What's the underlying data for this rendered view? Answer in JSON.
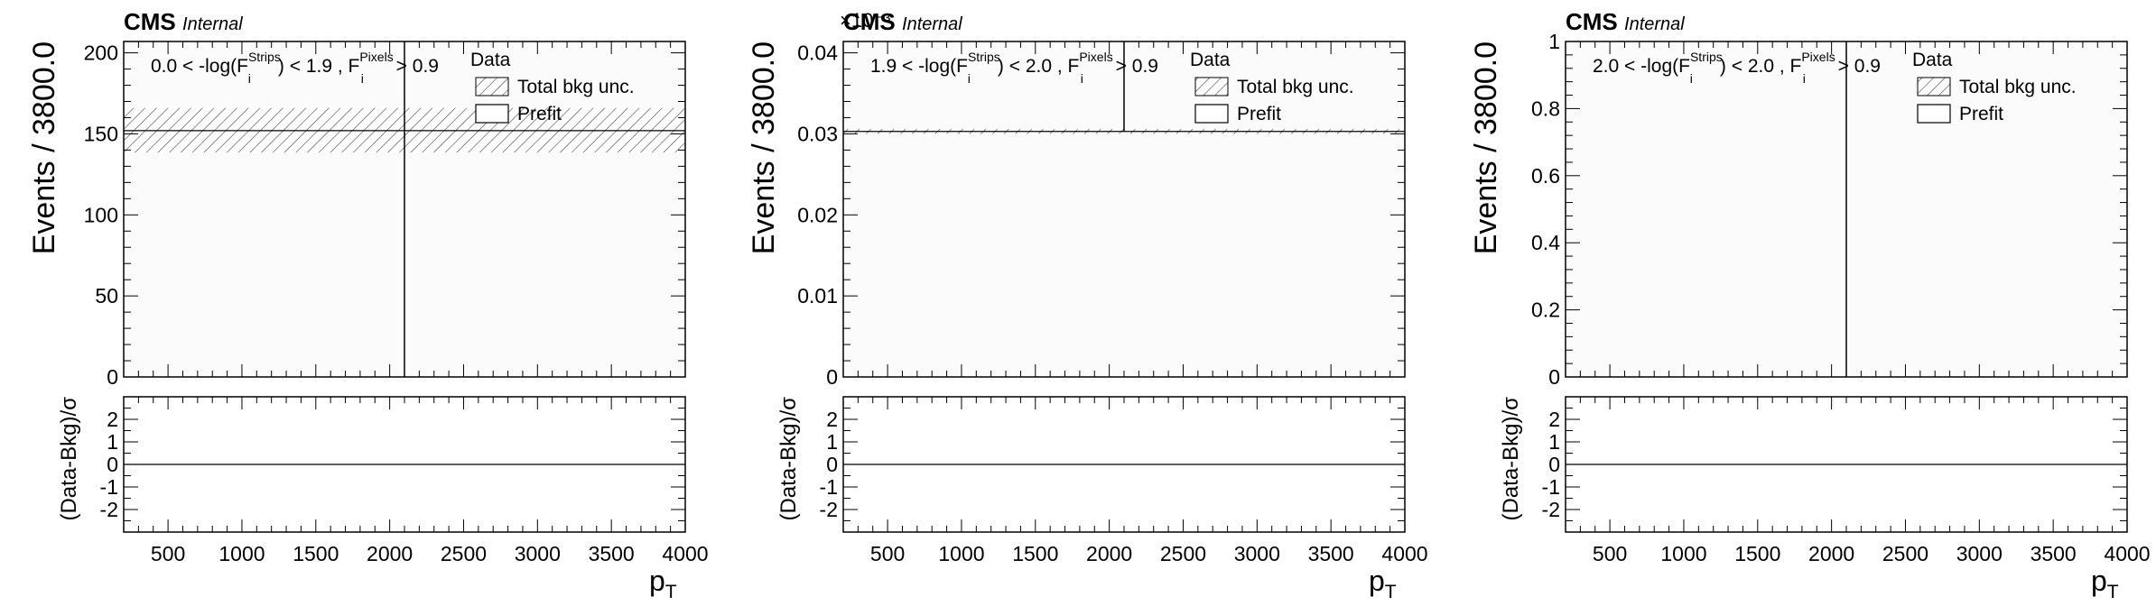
{
  "chart_data": [
    {
      "type": "bar",
      "experiment": "CMS",
      "status": "Internal",
      "region_label": {
        "pre": "0.0 < -log(F",
        "sup1": "Strips",
        "sub1": "i",
        "mid": ") < 1.9 , F",
        "sup2": "Pixels",
        "sub2": "i",
        "post": " > 0.9"
      },
      "ylabel": "Events / 3800.0",
      "ratio_ylabel": "(Data-Bkg)/σ",
      "xlabel": {
        "main": "p",
        "sub": "T"
      },
      "exponent_label": "",
      "xlim": [
        200,
        4000
      ],
      "ylim": [
        0,
        207
      ],
      "ratio_ylim": [
        -3,
        3
      ],
      "x_ticks": [
        500,
        1000,
        1500,
        2000,
        2500,
        3000,
        3500,
        4000
      ],
      "y_ticks": [
        0,
        50,
        100,
        150,
        200
      ],
      "y_tick_labels": [
        "0",
        "50",
        "100",
        "150",
        "200"
      ],
      "ratio_ticks": [
        -2,
        -1,
        0,
        1,
        2
      ],
      "prefit_value": 152,
      "bkg_unc_band": [
        138.5,
        166
      ],
      "data_marker": {
        "x": 2100,
        "y": 152,
        "yerr_low": 152,
        "yerr_high": 152
      },
      "legend": [
        {
          "kind": "data",
          "label": "Data"
        },
        {
          "kind": "hatch",
          "label": "Total bkg unc."
        },
        {
          "kind": "box",
          "label": "Prefit"
        }
      ]
    },
    {
      "type": "bar",
      "experiment": "CMS",
      "status": "Internal",
      "region_label": {
        "pre": "1.9 < -log(F",
        "sup1": "Strips",
        "sub1": "i",
        "mid": ") < 2.0 , F",
        "sup2": "Pixels",
        "sub2": "i",
        "post": " > 0.9"
      },
      "ylabel": "Events / 3800.0",
      "ratio_ylabel": "(Data-Bkg)/σ",
      "xlabel": {
        "main": "p",
        "sub": "T"
      },
      "exponent_label": "×10⁻³",
      "xlim": [
        200,
        4000
      ],
      "ylim": [
        0,
        0.0414
      ],
      "ratio_ylim": [
        -3,
        3
      ],
      "x_ticks": [
        500,
        1000,
        1500,
        2000,
        2500,
        3000,
        3500,
        4000
      ],
      "y_ticks": [
        0,
        0.01,
        0.02,
        0.03,
        0.04
      ],
      "y_tick_labels": [
        "0",
        "0.01",
        "0.02",
        "0.03",
        "0.04"
      ],
      "ratio_ticks": [
        -2,
        -1,
        0,
        1,
        2
      ],
      "prefit_value": 0.0303,
      "bkg_unc_band": [
        0.03,
        0.0306
      ],
      "data_marker": {
        "x": 2100,
        "y": 0.0303,
        "yerr_low": 0,
        "yerr_high": 0.0414
      },
      "legend": [
        {
          "kind": "data",
          "label": "Data"
        },
        {
          "kind": "hatch",
          "label": "Total bkg unc."
        },
        {
          "kind": "box",
          "label": "Prefit"
        }
      ]
    },
    {
      "type": "bar",
      "experiment": "CMS",
      "status": "Internal",
      "region_label": {
        "pre": "2.0 < -log(F",
        "sup1": "Strips",
        "sub1": "i",
        "mid": ") < 2.0 , F",
        "sup2": "Pixels",
        "sub2": "i",
        "post": " > 0.9"
      },
      "ylabel": "Events / 3800.0",
      "ratio_ylabel": "(Data-Bkg)/σ",
      "xlabel": {
        "main": "p",
        "sub": "T"
      },
      "exponent_label": "",
      "xlim": [
        200,
        4000
      ],
      "ylim": [
        0,
        1
      ],
      "ratio_ylim": [
        -3,
        3
      ],
      "x_ticks": [
        500,
        1000,
        1500,
        2000,
        2500,
        3000,
        3500,
        4000
      ],
      "y_ticks": [
        0,
        0.2,
        0.4,
        0.6,
        0.8,
        1
      ],
      "y_tick_labels": [
        "0",
        "0.2",
        "0.4",
        "0.6",
        "0.8",
        "1"
      ],
      "ratio_ticks": [
        -2,
        -1,
        0,
        1,
        2
      ],
      "prefit_value": 0,
      "bkg_unc_band": [
        0,
        0
      ],
      "data_marker": {
        "x": 2100,
        "y": 0,
        "yerr_low": 0,
        "yerr_high": 1
      },
      "legend": [
        {
          "kind": "data",
          "label": "Data"
        },
        {
          "kind": "hatch",
          "label": "Total bkg unc."
        },
        {
          "kind": "box",
          "label": "Prefit"
        }
      ]
    }
  ]
}
